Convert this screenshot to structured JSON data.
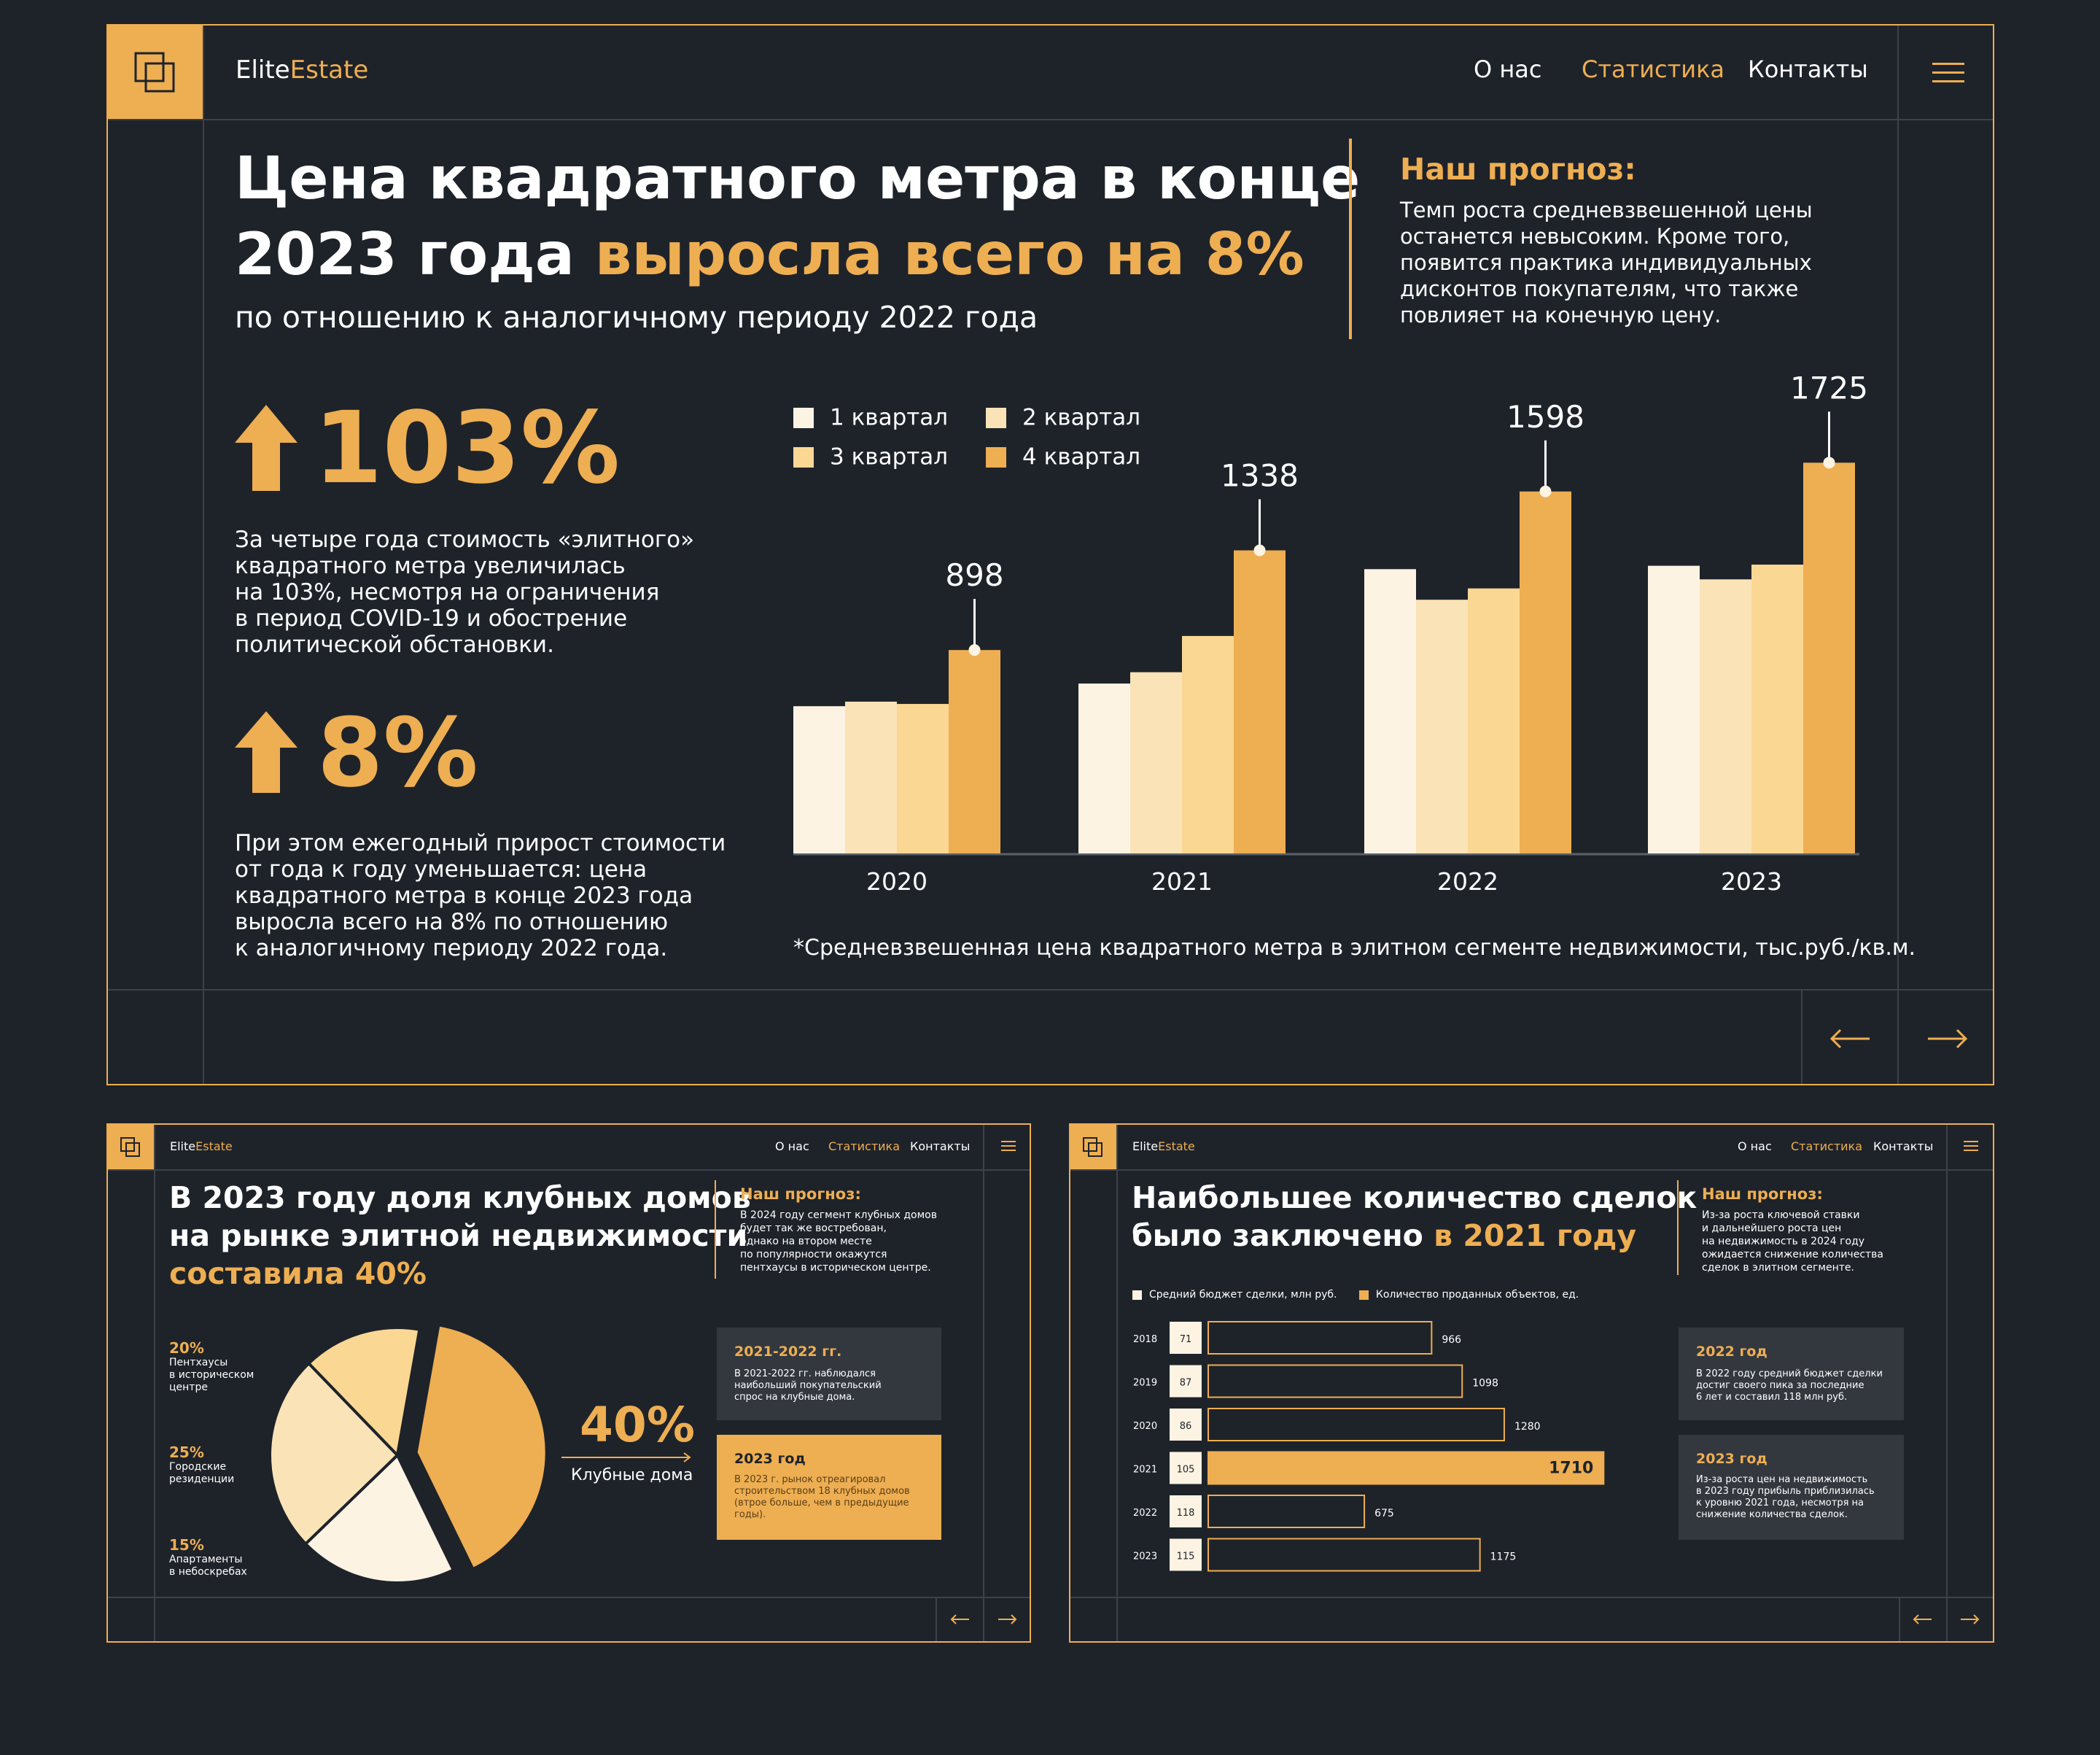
{
  "brand": {
    "name_part1": "Elite",
    "name_part2": "Estate"
  },
  "nav": [
    {
      "label": "О нас",
      "active": false
    },
    {
      "label": "Статистика",
      "active": true
    },
    {
      "label": "Контакты",
      "active": false
    }
  ],
  "colors": {
    "accent": "#eeae52",
    "background": "#1e232a",
    "divider": "#3c424b",
    "card": "#33383f"
  },
  "icons": {
    "logo": "layers-icon",
    "menu": "hamburger-icon",
    "prev": "arrow-left-icon",
    "next": "arrow-right-icon",
    "up": "arrow-up-icon"
  },
  "main": {
    "title_line1": "Цена квадратного метра в конце",
    "title_line2_white": "2023 года ",
    "title_line2_orange": "выросла всего на 8%",
    "subtitle": "по отношению к аналогичному периоду 2022 года",
    "forecast_title": "Наш прогноз:",
    "forecast_lines": [
      "Темп роста средневзвешенной цены",
      "останется невысоким. Кроме того,",
      "появится практика индивидуальных",
      "дисконтов покупателям, что также",
      "повлияет на конечную цену."
    ],
    "stat1_value": "103%",
    "stat1_lines": [
      "За четыре года стоимость «элитного»",
      "квадратного метра увеличилась",
      "на 103%, несмотря на ограничения",
      "в период COVID-19 и обострение",
      "политической обстановки."
    ],
    "stat2_value": "8%",
    "stat2_lines": [
      "При этом ежегодный прирост стоимости",
      "от года к году уменьшается: цена",
      "квадратного метра в конце 2023 года",
      "выросла всего на 8% по отношению",
      "к аналогичному периоду 2022 года."
    ],
    "footnote": "*Средневзвешенная цена квадратного метра в элитном сегменте недвижимости, тыс.руб./кв.м."
  },
  "chart_data": [
    {
      "type": "bar",
      "title": "",
      "categories": [
        "2020",
        "2021",
        "2022",
        "2023"
      ],
      "series": [
        {
          "name": "1 квартал",
          "color": "#fdf3e3",
          "values": [
            650,
            750,
            1255,
            1270
          ]
        },
        {
          "name": "2 квартал",
          "color": "#fbe3b8",
          "values": [
            670,
            800,
            1120,
            1210
          ]
        },
        {
          "name": "3 квартал",
          "color": "#fbd794",
          "values": [
            660,
            960,
            1170,
            1275
          ]
        },
        {
          "name": "4 квартал",
          "color": "#eeae52",
          "values": [
            898,
            1338,
            1598,
            1725
          ]
        }
      ],
      "annotations": [
        "898",
        "1338",
        "1598",
        "1725"
      ],
      "ylim": [
        0,
        1900
      ],
      "legend": "top-left"
    },
    {
      "type": "pie",
      "labels": [
        "Клубные дома",
        "Пентхаусы в историческом центре",
        "Городские резиденции",
        "Апартаменты в небоскребах"
      ],
      "values": [
        40,
        20,
        25,
        15
      ],
      "colors": [
        "#eeae52",
        "#fdf3e3",
        "#fbe3b8",
        "#fbd794"
      ]
    },
    {
      "type": "bar",
      "orientation": "horizontal",
      "categories": [
        "2018",
        "2019",
        "2020",
        "2021",
        "2022",
        "2023"
      ],
      "series": [
        {
          "name": "Средний бюджет сделки, млн руб.",
          "values": [
            71,
            87,
            86,
            105,
            118,
            115
          ]
        },
        {
          "name": "Количество проданных объектов, ед.",
          "values": [
            966,
            1098,
            1280,
            1710,
            675,
            1175
          ]
        }
      ],
      "xlim": [
        0,
        1750
      ]
    }
  ],
  "legend_main": [
    "1 квартал",
    "2 квартал",
    "3 квартал",
    "4 квартал"
  ],
  "x_labels": [
    "2020",
    "2021",
    "2022",
    "2023"
  ],
  "annotations": [
    "898",
    "1338",
    "1598",
    "1725"
  ],
  "slide2": {
    "title_line1": "В 2023 году доля клубных домов",
    "title_line2": "на рынке элитной недвижимости",
    "title_line3": "составила 40%",
    "forecast_title": "Наш прогноз:",
    "forecast_lines": [
      "В 2024 году сегмент клубных домов",
      "будет так же востребован,",
      "однако на втором месте",
      "по популярности окажутся",
      "пентхаусы в историческом центре."
    ],
    "labels": [
      {
        "pct": "20%",
        "lines": [
          "Пентхаусы",
          "в историческом",
          "центре"
        ]
      },
      {
        "pct": "25%",
        "lines": [
          "Городские",
          "резиденции"
        ]
      },
      {
        "pct": "15%",
        "lines": [
          "Апартаменты",
          "в небоскребах"
        ]
      }
    ],
    "big_pct": "40%",
    "big_label": "Клубные дома",
    "card1_title": "2021-2022 гг.",
    "card1_lines": [
      "В 2021-2022 гг. наблюдался",
      "наибольший покупательский",
      "спрос на клубные дома."
    ],
    "card2_title": "2023 год",
    "card2_lines": [
      "В 2023 г. рынок отреагировал",
      "строительством 18 клубных домов",
      "(втрое больше, чем в предыдущие",
      "годы)."
    ]
  },
  "slide3": {
    "title_line1": "Наибольшее количество сделок",
    "title_line2_white": "было заключено ",
    "title_line2_orange": "в 2021 году",
    "forecast_title": "Наш прогноз:",
    "forecast_lines": [
      "Из-за роста ключевой ставки",
      "и дальнейшего роста цен",
      "на недвижимость в 2024 году",
      "ожидается снижение количества",
      "сделок в элитном сегменте."
    ],
    "legend": [
      "Средний бюджет сделки, млн руб.",
      "Количество проданных объектов, ед."
    ],
    "years": [
      "2018",
      "2019",
      "2020",
      "2021",
      "2022",
      "2023"
    ],
    "budgets": [
      "71",
      "87",
      "86",
      "105",
      "118",
      "115"
    ],
    "counts": [
      "966",
      "1098",
      "1280",
      "1710",
      "675",
      "1175"
    ],
    "card1_title": "2022 год",
    "card1_lines": [
      "В 2022 году средний бюджет сделки",
      "достиг своего пика за последние",
      "6 лет и составил 118 млн руб."
    ],
    "card2_title": "2023 год",
    "card2_lines": [
      "Из-за роста цен на недвижимость",
      "в 2023 году прибыль приблизилась",
      "к уровню 2021 года, несмотря на",
      "снижение количества сделок."
    ]
  }
}
